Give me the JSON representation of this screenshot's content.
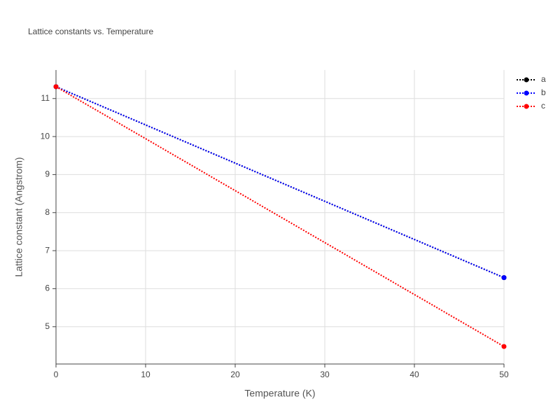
{
  "chart_data": {
    "type": "line",
    "title": "Lattice constants vs. Temperature",
    "x_label": "Temperature (K)",
    "y_label": "Lattice constant (Angstrom)",
    "x": [
      0,
      50
    ],
    "series": [
      {
        "name": "a",
        "color": "#000000",
        "values": [
          11.31,
          6.29
        ]
      },
      {
        "name": "b",
        "color": "#0000ff",
        "values": [
          11.31,
          6.29
        ]
      },
      {
        "name": "c",
        "color": "#ff0000",
        "values": [
          11.31,
          4.48
        ]
      }
    ],
    "xlim": [
      0,
      50
    ],
    "xticks": [
      0,
      10,
      20,
      30,
      40,
      50
    ],
    "ylim": [
      4.02,
      11.75
    ],
    "yticks": [
      5,
      6,
      7,
      8,
      9,
      10,
      11
    ],
    "grid": true,
    "legend": "top-right"
  }
}
